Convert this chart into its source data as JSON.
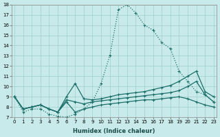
{
  "xlabel": "Humidex (Indice chaleur)",
  "bg_color": "#c8eaea",
  "grid_color": "#a0cccc",
  "line_color": "#1a6e68",
  "xlim": [
    0,
    23
  ],
  "ylim": [
    7,
    18
  ],
  "xticks": [
    0,
    1,
    2,
    3,
    4,
    5,
    6,
    7,
    8,
    9,
    10,
    11,
    12,
    13,
    14,
    15,
    16,
    17,
    18,
    19,
    20,
    21,
    22,
    23
  ],
  "yticks": [
    7,
    8,
    9,
    10,
    11,
    12,
    13,
    14,
    15,
    16,
    17,
    18
  ],
  "main_series": {
    "x": [
      0,
      1,
      2,
      3,
      4,
      5,
      6,
      7,
      8,
      9,
      10,
      11,
      12,
      13,
      14,
      15,
      16,
      17,
      18,
      19,
      20,
      21,
      22,
      23
    ],
    "y": [
      9.0,
      7.5,
      7.8,
      7.8,
      7.3,
      7.1,
      7.0,
      7.3,
      7.8,
      8.5,
      10.3,
      13.0,
      17.5,
      18.0,
      17.2,
      16.0,
      15.5,
      14.3,
      13.7,
      11.5,
      10.5,
      9.5,
      9.2,
      8.5
    ]
  },
  "flat_series": [
    {
      "x": [
        0,
        1,
        2,
        3,
        4,
        5,
        6,
        7,
        8,
        9,
        10,
        11,
        12,
        13,
        14,
        15,
        16,
        17,
        18,
        19,
        20,
        21,
        22,
        23
      ],
      "y": [
        9.0,
        7.8,
        8.0,
        8.2,
        7.8,
        7.5,
        9.0,
        10.3,
        8.8,
        8.7,
        8.8,
        9.0,
        9.2,
        9.3,
        9.4,
        9.5,
        9.7,
        9.9,
        10.1,
        10.5,
        11.0,
        11.5,
        9.5,
        9.0
      ]
    },
    {
      "x": [
        0,
        1,
        2,
        3,
        4,
        5,
        6,
        7,
        8,
        9,
        10,
        11,
        12,
        13,
        14,
        15,
        16,
        17,
        18,
        19,
        20,
        21,
        22,
        23
      ],
      "y": [
        9.0,
        7.8,
        8.0,
        8.2,
        7.8,
        7.5,
        8.7,
        8.5,
        8.3,
        8.5,
        8.6,
        8.7,
        8.8,
        8.9,
        9.0,
        9.1,
        9.2,
        9.3,
        9.4,
        9.6,
        10.0,
        10.5,
        9.2,
        8.5
      ]
    },
    {
      "x": [
        0,
        1,
        2,
        3,
        4,
        5,
        6,
        7,
        8,
        9,
        10,
        11,
        12,
        13,
        14,
        15,
        16,
        17,
        18,
        19,
        20,
        21,
        22,
        23
      ],
      "y": [
        9.0,
        7.8,
        8.0,
        8.2,
        7.8,
        7.5,
        8.5,
        7.5,
        7.8,
        8.0,
        8.2,
        8.3,
        8.4,
        8.5,
        8.6,
        8.7,
        8.7,
        8.8,
        8.9,
        9.0,
        8.8,
        8.5,
        8.2,
        8.0
      ]
    }
  ]
}
